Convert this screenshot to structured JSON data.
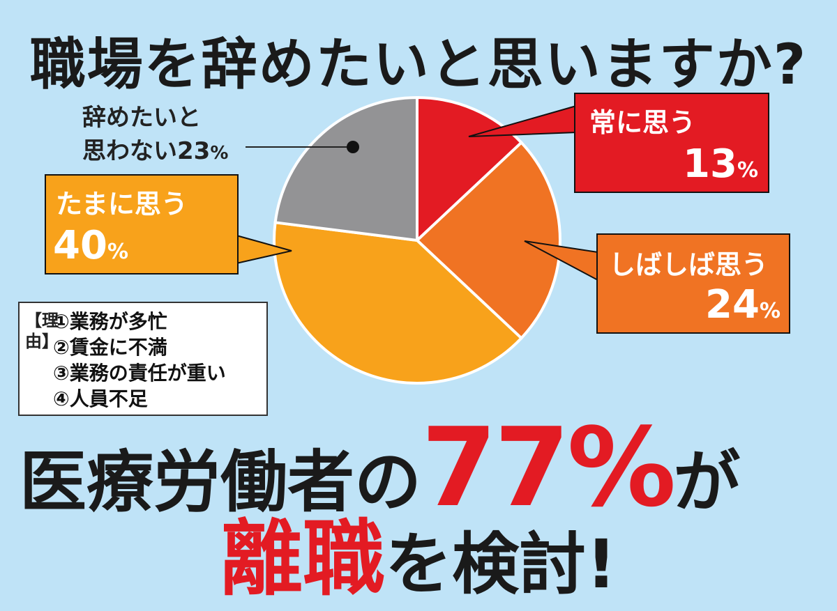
{
  "title": "職場を辞めたいと思いますか?",
  "chart_data": {
    "type": "pie",
    "title": "職場を辞めたいと思いますか?",
    "slices": [
      {
        "name": "常に思う",
        "value": 13,
        "color": "#e31b23"
      },
      {
        "name": "しばしば思う",
        "value": 24,
        "color": "#f07323"
      },
      {
        "name": "たまに思う",
        "value": 40,
        "color": "#f8a21b"
      },
      {
        "name": "辞めたいと思わない",
        "value": 23,
        "color": "#939395"
      }
    ],
    "unit": "%"
  },
  "labels": {
    "always": {
      "name": "常に思う",
      "value": "13",
      "unit": "%"
    },
    "often": {
      "name": "しばしば思う",
      "value": "24",
      "unit": "%"
    },
    "sometimes": {
      "name": "たまに思う",
      "value": "40",
      "unit": "%"
    },
    "never": {
      "line1": "辞めたいと",
      "line2": "思わない23",
      "unit": "%"
    }
  },
  "reasons": {
    "tag": "【理由】",
    "items": [
      "①業務が多忙",
      "②賃金に不満",
      "③業務の責任が重い",
      "④人員不足"
    ]
  },
  "headline": {
    "part1": "医療労働者の",
    "number": "77%",
    "part2": "が",
    "red": "離職",
    "part3": "を検討!"
  }
}
